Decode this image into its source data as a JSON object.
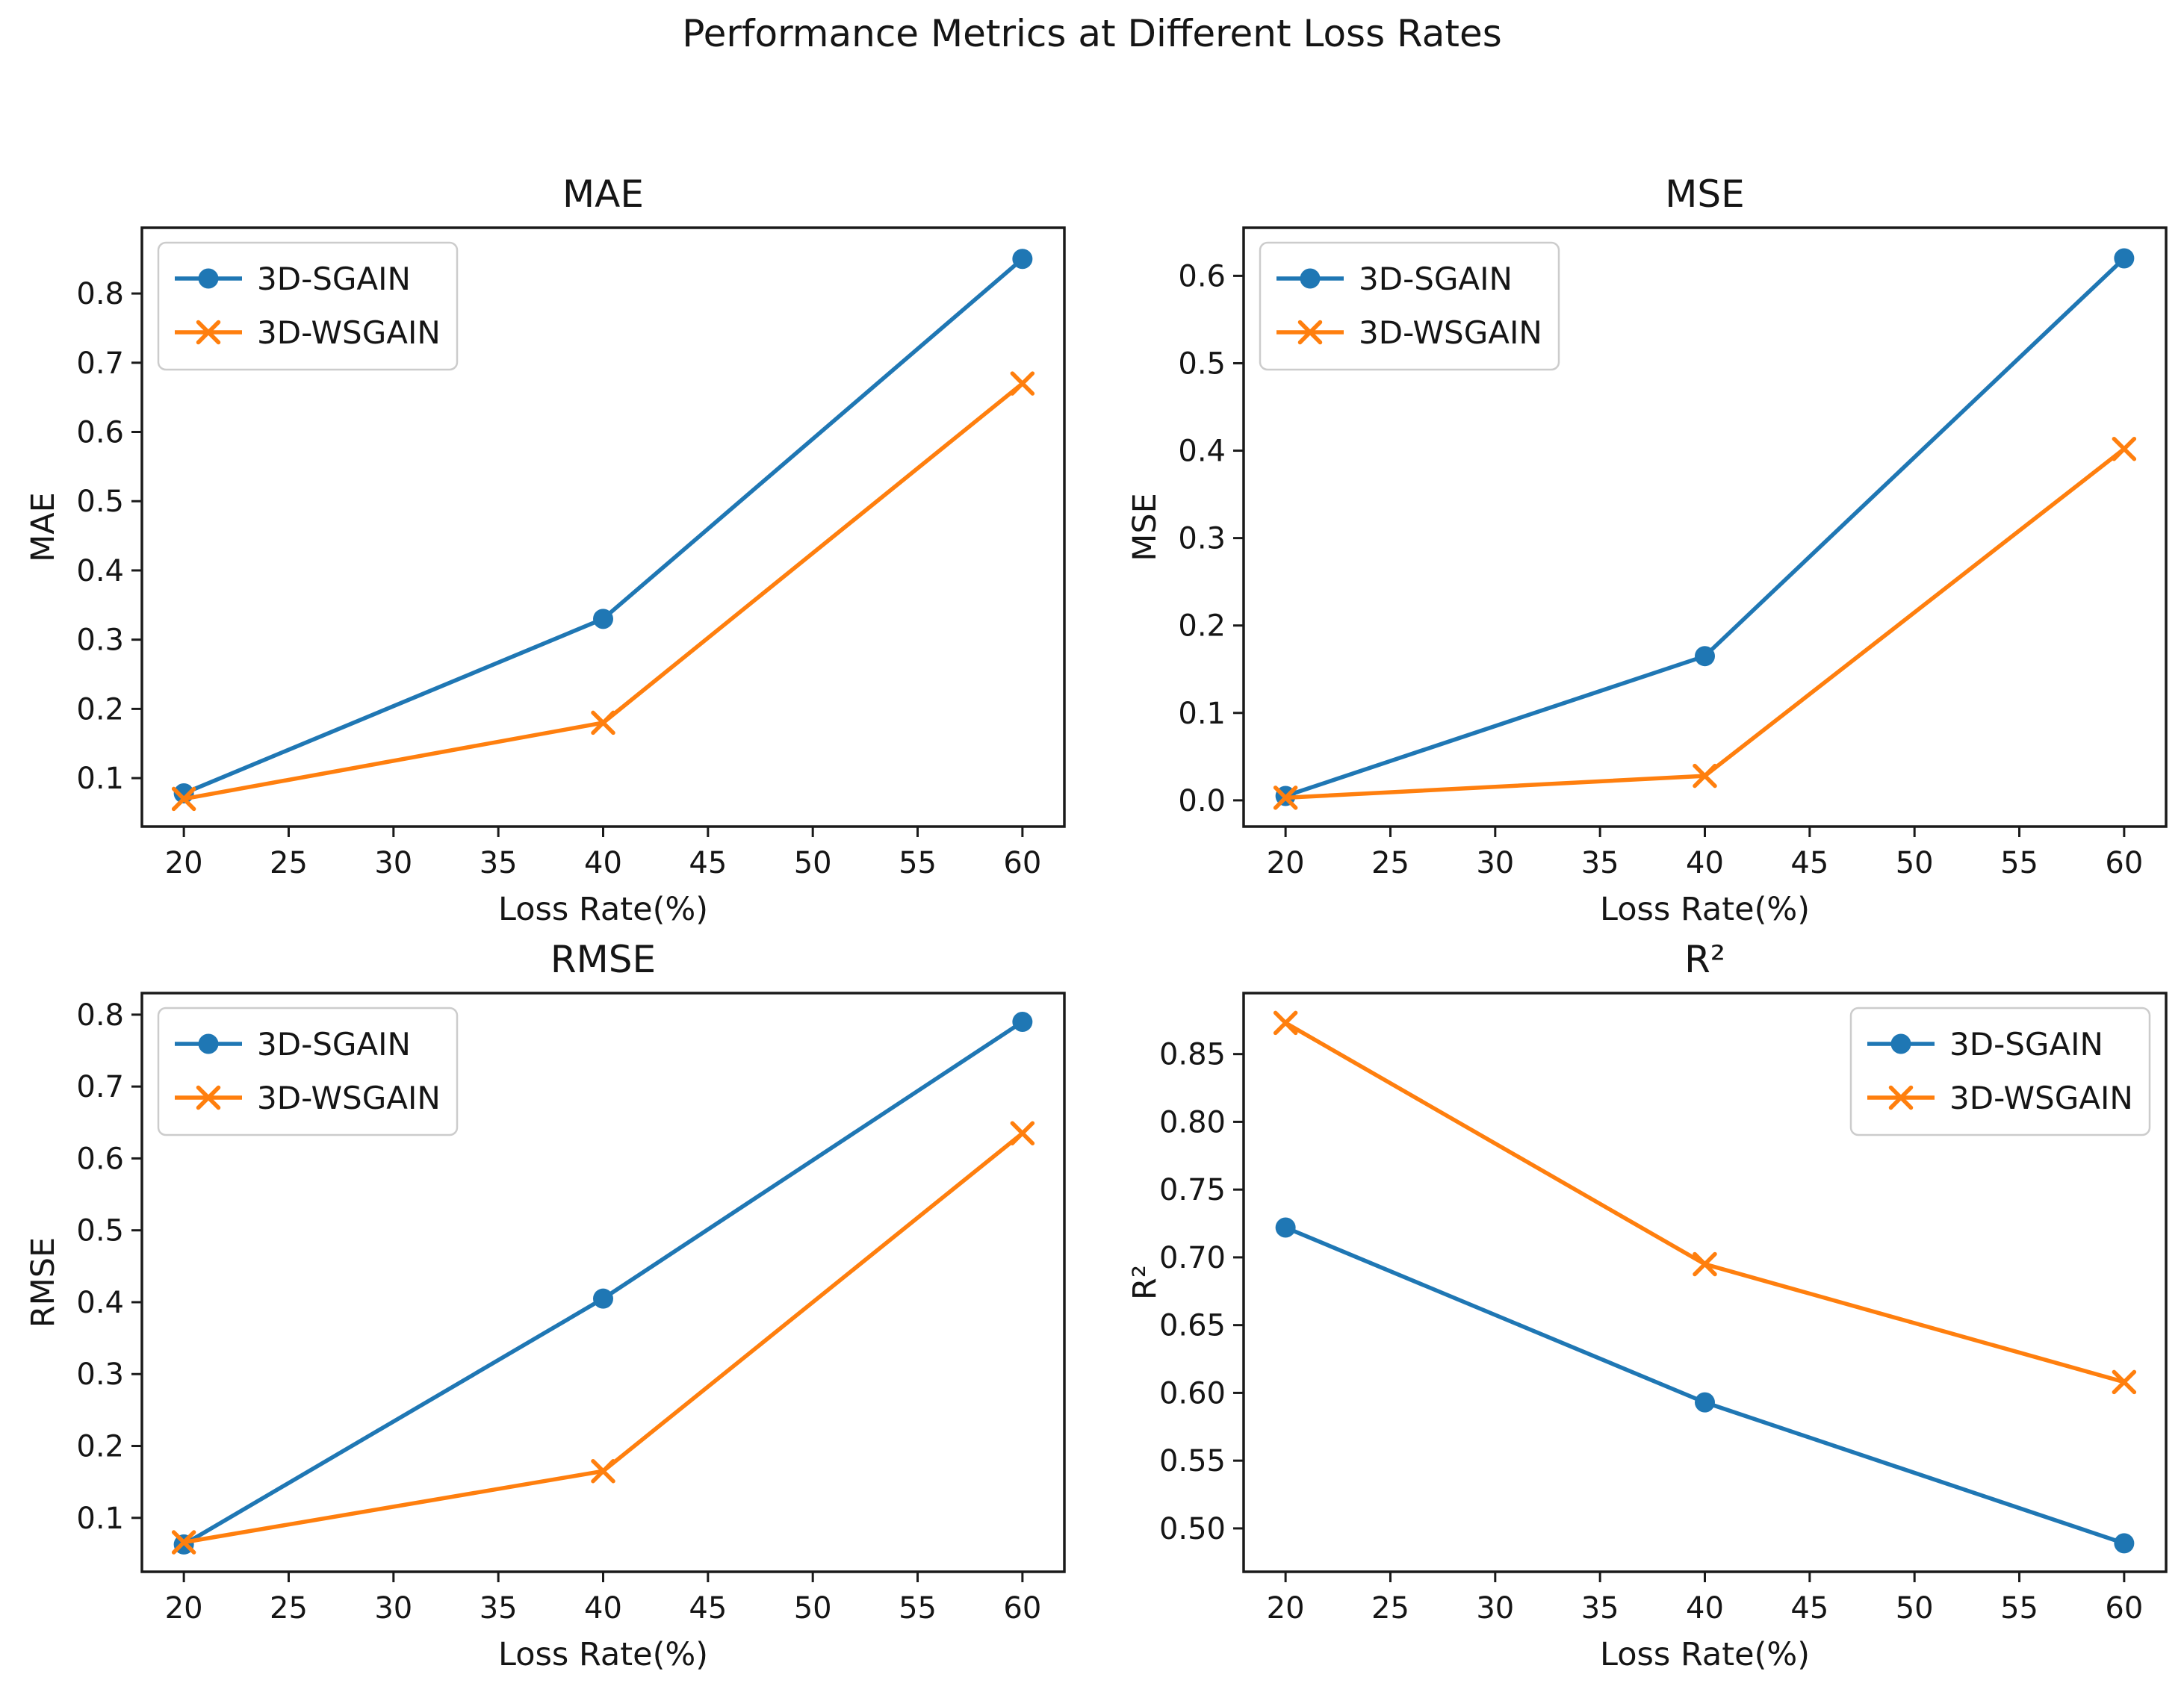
{
  "figure": {
    "suptitle": "Performance Metrics at Different Loss Rates",
    "background_color": "#ffffff",
    "text_color": "#151515",
    "spine_color": "#1a1a1a",
    "legend_border_color": "#cccccc",
    "series_colors": {
      "sgain_blue": "#1f77b4",
      "wsgain_orange": "#ff7f0e"
    }
  },
  "chart_data": [
    {
      "id": "mae",
      "type": "line",
      "title": "MAE",
      "xlabel": "Loss Rate(%)",
      "ylabel": "MAE",
      "x": [
        20,
        40,
        60
      ],
      "xlim": [
        18,
        62
      ],
      "ylim": [
        0.03,
        0.895
      ],
      "xticks": [
        20,
        25,
        30,
        35,
        40,
        45,
        50,
        55,
        60
      ],
      "xtick_labels": [
        "20",
        "25",
        "30",
        "35",
        "40",
        "45",
        "50",
        "55",
        "60"
      ],
      "yticks": [
        0.1,
        0.2,
        0.3,
        0.4,
        0.5,
        0.6,
        0.7,
        0.8
      ],
      "ytick_labels": [
        "0.1",
        "0.2",
        "0.3",
        "0.4",
        "0.5",
        "0.6",
        "0.7",
        "0.8"
      ],
      "grid": false,
      "legend_position": "upper left",
      "series": [
        {
          "name": "3D-SGAIN",
          "color": "#1f77b4",
          "marker": "circle",
          "values": [
            0.078,
            0.33,
            0.85
          ]
        },
        {
          "name": "3D-WSGAIN",
          "color": "#ff7f0e",
          "marker": "x",
          "values": [
            0.07,
            0.18,
            0.67
          ]
        }
      ]
    },
    {
      "id": "mse",
      "type": "line",
      "title": "MSE",
      "xlabel": "Loss Rate(%)",
      "ylabel": "MSE",
      "x": [
        20,
        40,
        60
      ],
      "xlim": [
        18,
        62
      ],
      "ylim": [
        -0.03,
        0.655
      ],
      "xticks": [
        20,
        25,
        30,
        35,
        40,
        45,
        50,
        55,
        60
      ],
      "xtick_labels": [
        "20",
        "25",
        "30",
        "35",
        "40",
        "45",
        "50",
        "55",
        "60"
      ],
      "yticks": [
        0.0,
        0.1,
        0.2,
        0.3,
        0.4,
        0.5,
        0.6
      ],
      "ytick_labels": [
        "0.0",
        "0.1",
        "0.2",
        "0.3",
        "0.4",
        "0.5",
        "0.6"
      ],
      "grid": false,
      "legend_position": "upper left",
      "series": [
        {
          "name": "3D-SGAIN",
          "color": "#1f77b4",
          "marker": "circle",
          "values": [
            0.005,
            0.165,
            0.62
          ]
        },
        {
          "name": "3D-WSGAIN",
          "color": "#ff7f0e",
          "marker": "x",
          "values": [
            0.003,
            0.028,
            0.402
          ]
        }
      ]
    },
    {
      "id": "rmse",
      "type": "line",
      "title": "RMSE",
      "xlabel": "Loss Rate(%)",
      "ylabel": "RMSE",
      "x": [
        20,
        40,
        60
      ],
      "xlim": [
        18,
        62
      ],
      "ylim": [
        0.025,
        0.83
      ],
      "xticks": [
        20,
        25,
        30,
        35,
        40,
        45,
        50,
        55,
        60
      ],
      "xtick_labels": [
        "20",
        "25",
        "30",
        "35",
        "40",
        "45",
        "50",
        "55",
        "60"
      ],
      "yticks": [
        0.1,
        0.2,
        0.3,
        0.4,
        0.5,
        0.6,
        0.7,
        0.8
      ],
      "ytick_labels": [
        "0.1",
        "0.2",
        "0.3",
        "0.4",
        "0.5",
        "0.6",
        "0.7",
        "0.8"
      ],
      "grid": false,
      "legend_position": "upper left",
      "series": [
        {
          "name": "3D-SGAIN",
          "color": "#1f77b4",
          "marker": "circle",
          "values": [
            0.063,
            0.405,
            0.79
          ]
        },
        {
          "name": "3D-WSGAIN",
          "color": "#ff7f0e",
          "marker": "x",
          "values": [
            0.066,
            0.165,
            0.635
          ]
        }
      ]
    },
    {
      "id": "r2",
      "type": "line",
      "title": "R²",
      "xlabel": "Loss Rate(%)",
      "ylabel": "R²",
      "x": [
        20,
        40,
        60
      ],
      "xlim": [
        18,
        62
      ],
      "ylim": [
        0.468,
        0.895
      ],
      "xticks": [
        20,
        25,
        30,
        35,
        40,
        45,
        50,
        55,
        60
      ],
      "xtick_labels": [
        "20",
        "25",
        "30",
        "35",
        "40",
        "45",
        "50",
        "55",
        "60"
      ],
      "yticks": [
        0.5,
        0.55,
        0.6,
        0.65,
        0.7,
        0.75,
        0.8,
        0.85
      ],
      "ytick_labels": [
        "0.50",
        "0.55",
        "0.60",
        "0.65",
        "0.70",
        "0.75",
        "0.80",
        "0.85"
      ],
      "grid": false,
      "legend_position": "upper right",
      "series": [
        {
          "name": "3D-SGAIN",
          "color": "#1f77b4",
          "marker": "circle",
          "values": [
            0.722,
            0.593,
            0.489
          ]
        },
        {
          "name": "3D-WSGAIN",
          "color": "#ff7f0e",
          "marker": "x",
          "values": [
            0.873,
            0.695,
            0.608
          ]
        }
      ]
    }
  ]
}
